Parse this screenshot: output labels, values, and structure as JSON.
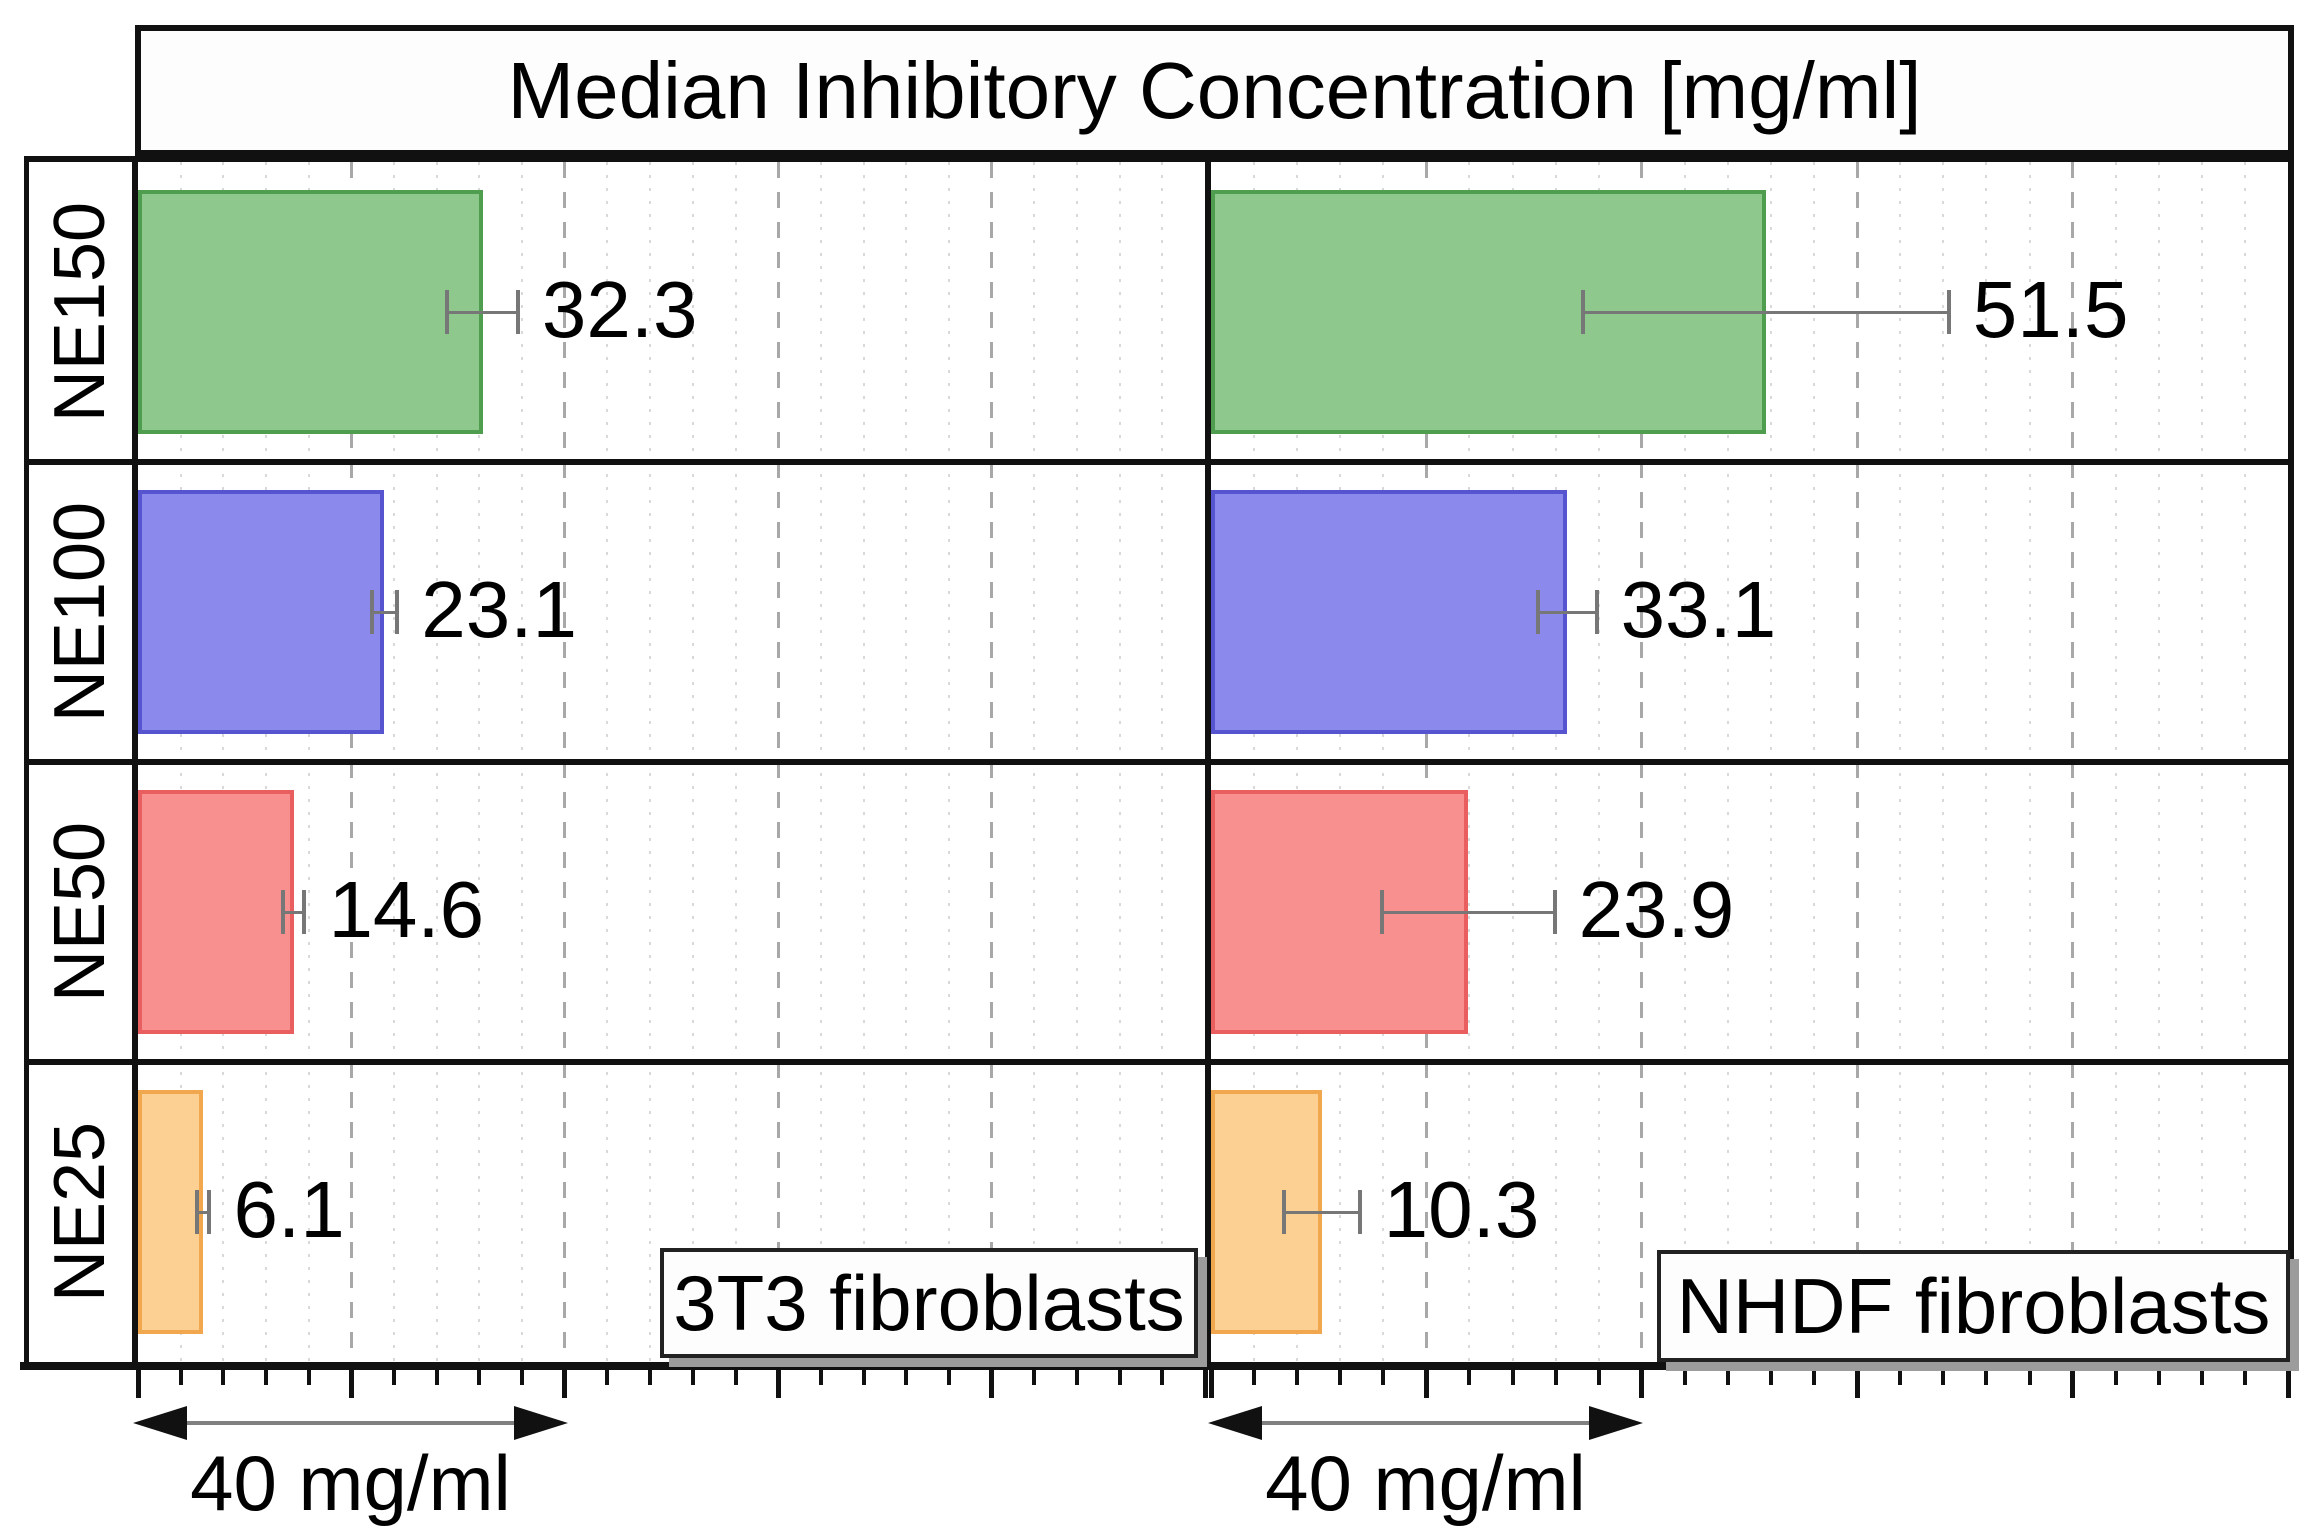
{
  "title": "Median Inhibitory Concentration [mg/ml]",
  "scale_bar": {
    "label": "40 mg/ml",
    "span_mg_ml": 40
  },
  "chart_data": {
    "type": "bar",
    "orientation": "horizontal",
    "unit": "mg/ml",
    "title": "Median Inhibitory Concentration [mg/ml]",
    "categories": [
      "NE150",
      "NE100",
      "NE50",
      "NE25"
    ],
    "x_axis": {
      "min": 0,
      "max": 100,
      "major_step": 20,
      "minor_step": 4,
      "major_grid": "dashed",
      "minor_grid": "dotted"
    },
    "series": [
      {
        "name": "3T3 fibroblasts",
        "values": [
          32.3,
          23.1,
          14.6,
          6.1
        ],
        "errors": [
          3.3,
          1.2,
          1.0,
          0.6
        ]
      },
      {
        "name": "NHDF fibroblasts",
        "values": [
          51.5,
          33.1,
          23.9,
          10.3
        ],
        "errors": [
          17.0,
          2.7,
          8.0,
          3.5
        ]
      }
    ],
    "bar_styles": [
      {
        "category": "NE150",
        "fill": "#8ec88d",
        "edge": "#4f9e50"
      },
      {
        "category": "NE100",
        "fill": "#8b89eb",
        "edge": "#5654cf"
      },
      {
        "category": "NE50",
        "fill": "#f89090",
        "edge": "#e95e5e"
      },
      {
        "category": "NE25",
        "fill": "#fccf92",
        "edge": "#f1a74e"
      }
    ],
    "colors": {
      "error_bar": "#777777",
      "major_grid": "#a8a8a8",
      "minor_grid": "#d9d9d9",
      "frame": "#111111",
      "legend_shadow": "#9c9c9c",
      "arrow_line": "#808080"
    }
  }
}
